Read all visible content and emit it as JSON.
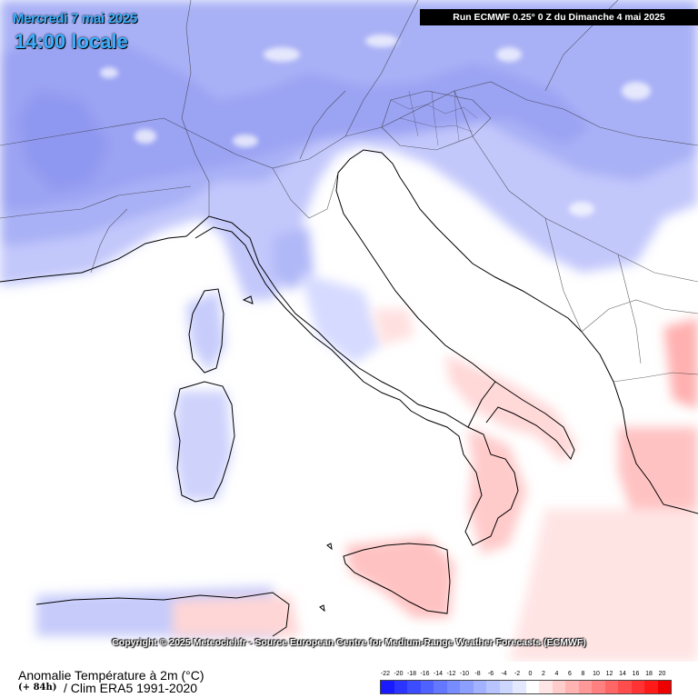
{
  "header": {
    "date_label": "Mercredi 7 mai 2025",
    "time_label": "14:00 locale",
    "run_label": "Run ECMWF 0.25° 0 Z du Dimanche 4 mai 2025"
  },
  "map": {
    "region": "Italy",
    "copyright": "Copyright © 2025 Meteociel.fr - Source European Centre for Medium-Range Weather Forecasts (ECMWF)"
  },
  "footer": {
    "parameter": "Anomalie Température à 2m (°C)",
    "lead_time": "(+ 84h)",
    "climatology": "/ Clim ERA5 1991-2020"
  },
  "legend": {
    "labels": [
      "-22",
      "-20",
      "-18",
      "-16",
      "-14",
      "-12",
      "-10",
      "-8",
      "-6",
      "-4",
      "-2",
      "0",
      "2",
      "4",
      "6",
      "8",
      "10",
      "12",
      "14",
      "16",
      "18",
      "20"
    ],
    "colors": [
      "#1a1aff",
      "#2b35ff",
      "#3c4cff",
      "#4f62ff",
      "#6377ff",
      "#778cff",
      "#8c9fff",
      "#a2b2ff",
      "#b8c4ff",
      "#cdd6ff",
      "#e3e8ff",
      "#ffffff",
      "#ffe6e6",
      "#ffcccc",
      "#ffb3b3",
      "#ff9999",
      "#ff8080",
      "#ff6666",
      "#ff4d4d",
      "#ff3333",
      "#ff1a1a",
      "#ee0000"
    ],
    "color_cold": "#a7b0f5",
    "color_warm": "#ffc6c6"
  }
}
